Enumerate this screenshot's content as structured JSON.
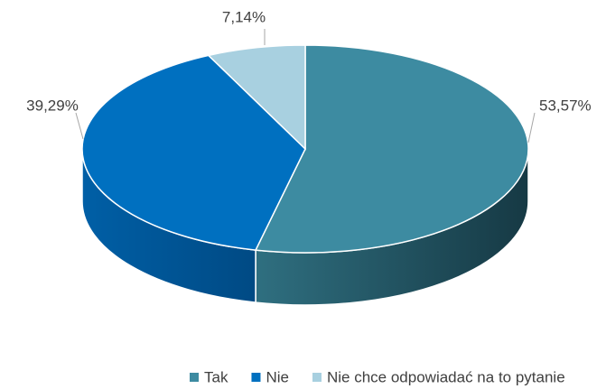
{
  "chart_data": {
    "type": "pie",
    "categories": [
      "Tak",
      "Nie",
      "Nie chce odpowiadać na to pytanie"
    ],
    "values": [
      53.57,
      39.29,
      7.14
    ],
    "value_labels": [
      "53,57%",
      "39,29%",
      "7,14%"
    ],
    "colors": [
      "#3d8ba1",
      "#0070c0",
      "#a8d0e0"
    ],
    "legend": "bottom"
  }
}
